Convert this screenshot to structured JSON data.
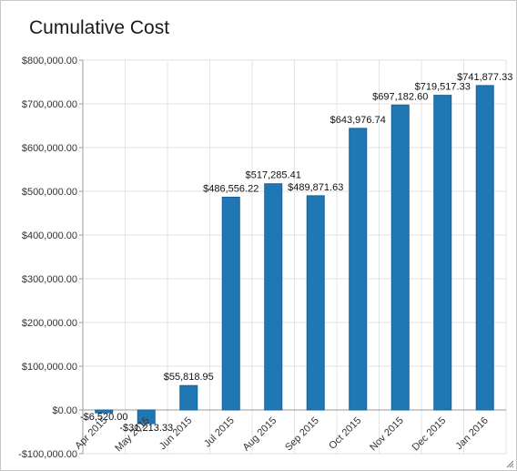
{
  "chart_title": "Cumulative Cost",
  "colors": {
    "bar": "#1f77b4",
    "bar_stroke": "#17609a",
    "grid": "#e3e3e3",
    "axis": "#9a9a9a"
  },
  "chart_data": {
    "type": "bar",
    "title": "Cumulative Cost",
    "xlabel": "",
    "ylabel": "",
    "ylim": [
      -100000,
      800000
    ],
    "y_ticks": [
      -100000,
      0,
      100000,
      200000,
      300000,
      400000,
      500000,
      600000,
      700000,
      800000
    ],
    "y_tick_labels": [
      "-$100,000.00",
      "$0.00",
      "$100,000.00",
      "$200,000.00",
      "$300,000.00",
      "$400,000.00",
      "$500,000.00",
      "$600,000.00",
      "$700,000.00",
      "$800,000.00"
    ],
    "grid": true,
    "categories": [
      "Apr 2015",
      "May 2015",
      "Jun 2015",
      "Jul 2015",
      "Aug 2015",
      "Sep 2015",
      "Oct 2015",
      "Nov 2015",
      "Dec 2015",
      "Jan 2016"
    ],
    "values": [
      -6520.0,
      -31213.33,
      55818.95,
      486556.22,
      517285.41,
      489871.63,
      643976.74,
      697182.6,
      719517.33,
      741877.33
    ],
    "data_labels": [
      "-$6,520.00",
      "-$31,213.33",
      "$55,818.95",
      "$486,556.22",
      "$517,285.41",
      "$489,871.63",
      "$643,976.74",
      "$697,182.60",
      "$719,517.33",
      "$741,877.33"
    ]
  }
}
